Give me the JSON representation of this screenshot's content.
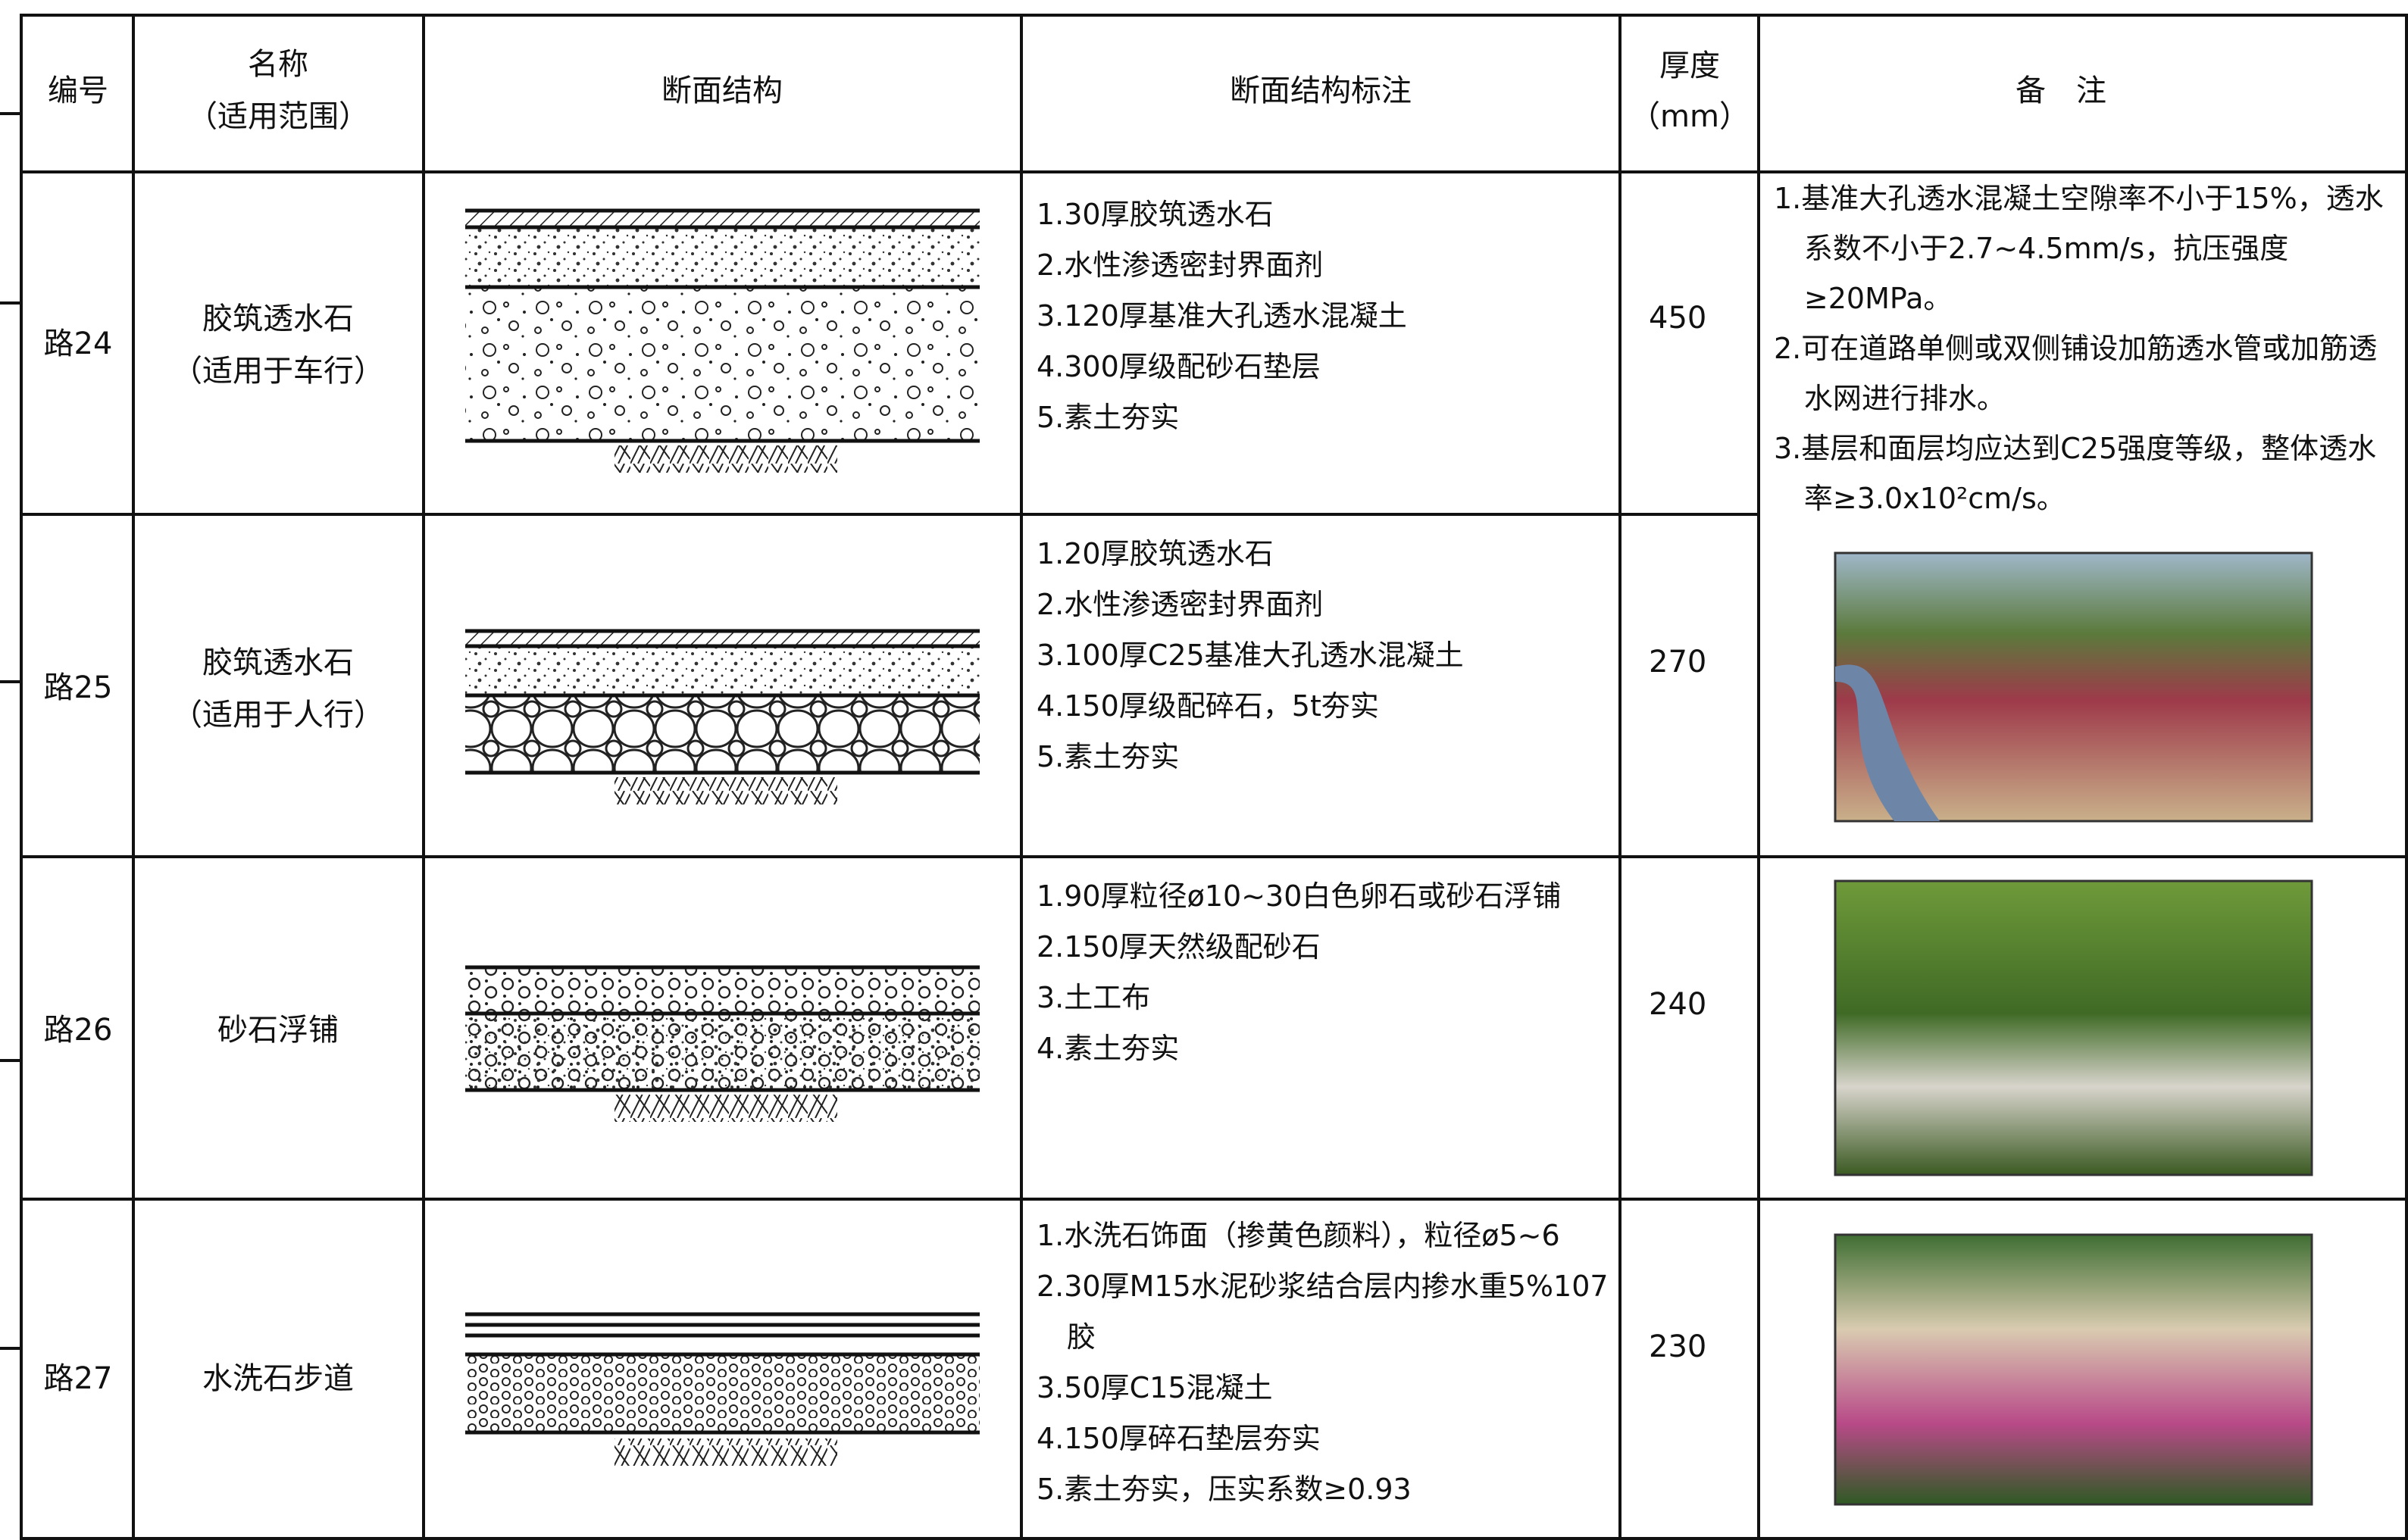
{
  "header": {
    "no": "编号",
    "name": "名称",
    "scope": "（适用范围）",
    "section": "断面结构",
    "notes": "断面结构标注",
    "thickness": "厚度",
    "unit": "（mm）",
    "remarks": "备　注"
  },
  "rows": [
    {
      "no": "路24",
      "name": "胶筑透水石",
      "scope": "（适用于车行）",
      "thickness": 450,
      "notes": [
        "1.30厚胶筑透水石",
        "2.水性渗透密封界面剂",
        "3.120厚基准大孔透水混凝土",
        "4.300厚级配砂石垫层",
        "5.素土夯实"
      ]
    },
    {
      "no": "路25",
      "name": "胶筑透水石",
      "scope": "（适用于人行）",
      "thickness": 270,
      "notes": [
        "1.20厚胶筑透水石",
        "2.水性渗透密封界面剂",
        "3.100厚C25基准大孔透水混凝土",
        "4.150厚级配碎石，5t夯实",
        "5.素土夯实"
      ]
    },
    {
      "no": "路26",
      "name": "砂石浮铺",
      "thickness": 240,
      "notes": [
        "1.90厚粒径ø10~30白色卵石或砂石浮铺",
        "2.150厚天然级配砂石",
        "3.土工布",
        "4.素土夯实"
      ]
    },
    {
      "no": "路27",
      "name": "水洗石步道",
      "thickness": 230,
      "notes": [
        "1.水洗石饰面（掺黄色颜料），粒径ø5~6",
        "2.30厚M15水泥砂浆结合层内掺水重5%107胶",
        "3.50厚C15混凝土",
        "4.150厚碎石垫层夯实",
        "5.素土夯实，压实系数≥0.93"
      ]
    }
  ],
  "remarks": [
    "1.基准大孔透水混凝土空隙率不小于15%，透水系数不小于2.7~4.5mm/s，抗压强度≥20MPa。",
    "2.可在道路单侧或双侧铺设加筋透水管或加筋透水网进行排水。",
    "3.基层和面层均应达到C25强度等级，整体透水率≥3.0x10²cm/s。"
  ]
}
